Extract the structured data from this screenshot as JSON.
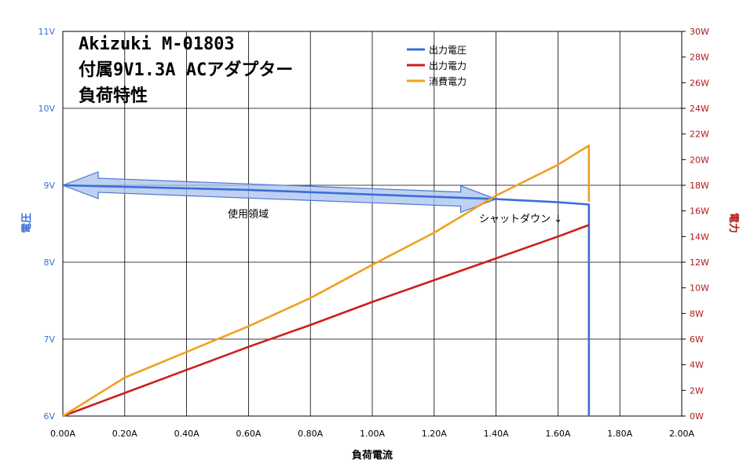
{
  "chart_data": {
    "type": "line",
    "title_lines": [
      "Akizuki M-01803",
      "付属9V1.3A ACアダプター",
      "負荷特性"
    ],
    "xlabel": "負荷電流",
    "ylabel_left": "電圧",
    "ylabel_right": "電力",
    "xlim": [
      0,
      2.0
    ],
    "ylim_left": [
      6,
      11
    ],
    "ylim_right": [
      0,
      30
    ],
    "x_ticks": [
      "0.00A",
      "0.20A",
      "0.40A",
      "0.60A",
      "0.80A",
      "1.00A",
      "1.20A",
      "1.40A",
      "1.60A",
      "1.80A",
      "2.00A"
    ],
    "y_left_ticks": [
      "6V",
      "7V",
      "8V",
      "9V",
      "10V",
      "11V"
    ],
    "y_right_ticks": [
      "0W",
      "2W",
      "4W",
      "6W",
      "8W",
      "10W",
      "12W",
      "14W",
      "16W",
      "18W",
      "20W",
      "22W",
      "24W",
      "26W",
      "28W",
      "30W"
    ],
    "grid": true,
    "legend_position": "top-center",
    "series": [
      {
        "name": "出力電圧",
        "axis": "left",
        "color": "#3a6fd8",
        "points": [
          [
            0,
            9.0
          ],
          [
            0.2,
            8.98
          ],
          [
            0.4,
            8.96
          ],
          [
            0.6,
            8.94
          ],
          [
            0.8,
            8.91
          ],
          [
            1.0,
            8.88
          ],
          [
            1.2,
            8.85
          ],
          [
            1.4,
            8.82
          ],
          [
            1.6,
            8.78
          ],
          [
            1.7,
            8.75
          ],
          [
            1.7,
            6.0
          ]
        ]
      },
      {
        "name": "出力電力",
        "axis": "right",
        "color": "#cc1f1f",
        "points": [
          [
            0,
            0
          ],
          [
            0.2,
            1.8
          ],
          [
            0.4,
            3.6
          ],
          [
            0.6,
            5.4
          ],
          [
            0.8,
            7.1
          ],
          [
            1.0,
            8.9
          ],
          [
            1.2,
            10.6
          ],
          [
            1.4,
            12.3
          ],
          [
            1.6,
            14.0
          ],
          [
            1.7,
            14.9
          ]
        ]
      },
      {
        "name": "消費電力",
        "axis": "right",
        "color": "#f0a020",
        "points": [
          [
            0,
            0
          ],
          [
            0.2,
            3.0
          ],
          [
            0.4,
            5.0
          ],
          [
            0.6,
            7.0
          ],
          [
            0.8,
            9.2
          ],
          [
            1.0,
            11.8
          ],
          [
            1.2,
            14.3
          ],
          [
            1.4,
            17.2
          ],
          [
            1.6,
            19.6
          ],
          [
            1.7,
            21.1
          ],
          [
            1.7,
            16.7
          ]
        ]
      }
    ],
    "annotations": {
      "usage_region": "使用領域",
      "shutdown": "シャットダウン ↓"
    }
  }
}
